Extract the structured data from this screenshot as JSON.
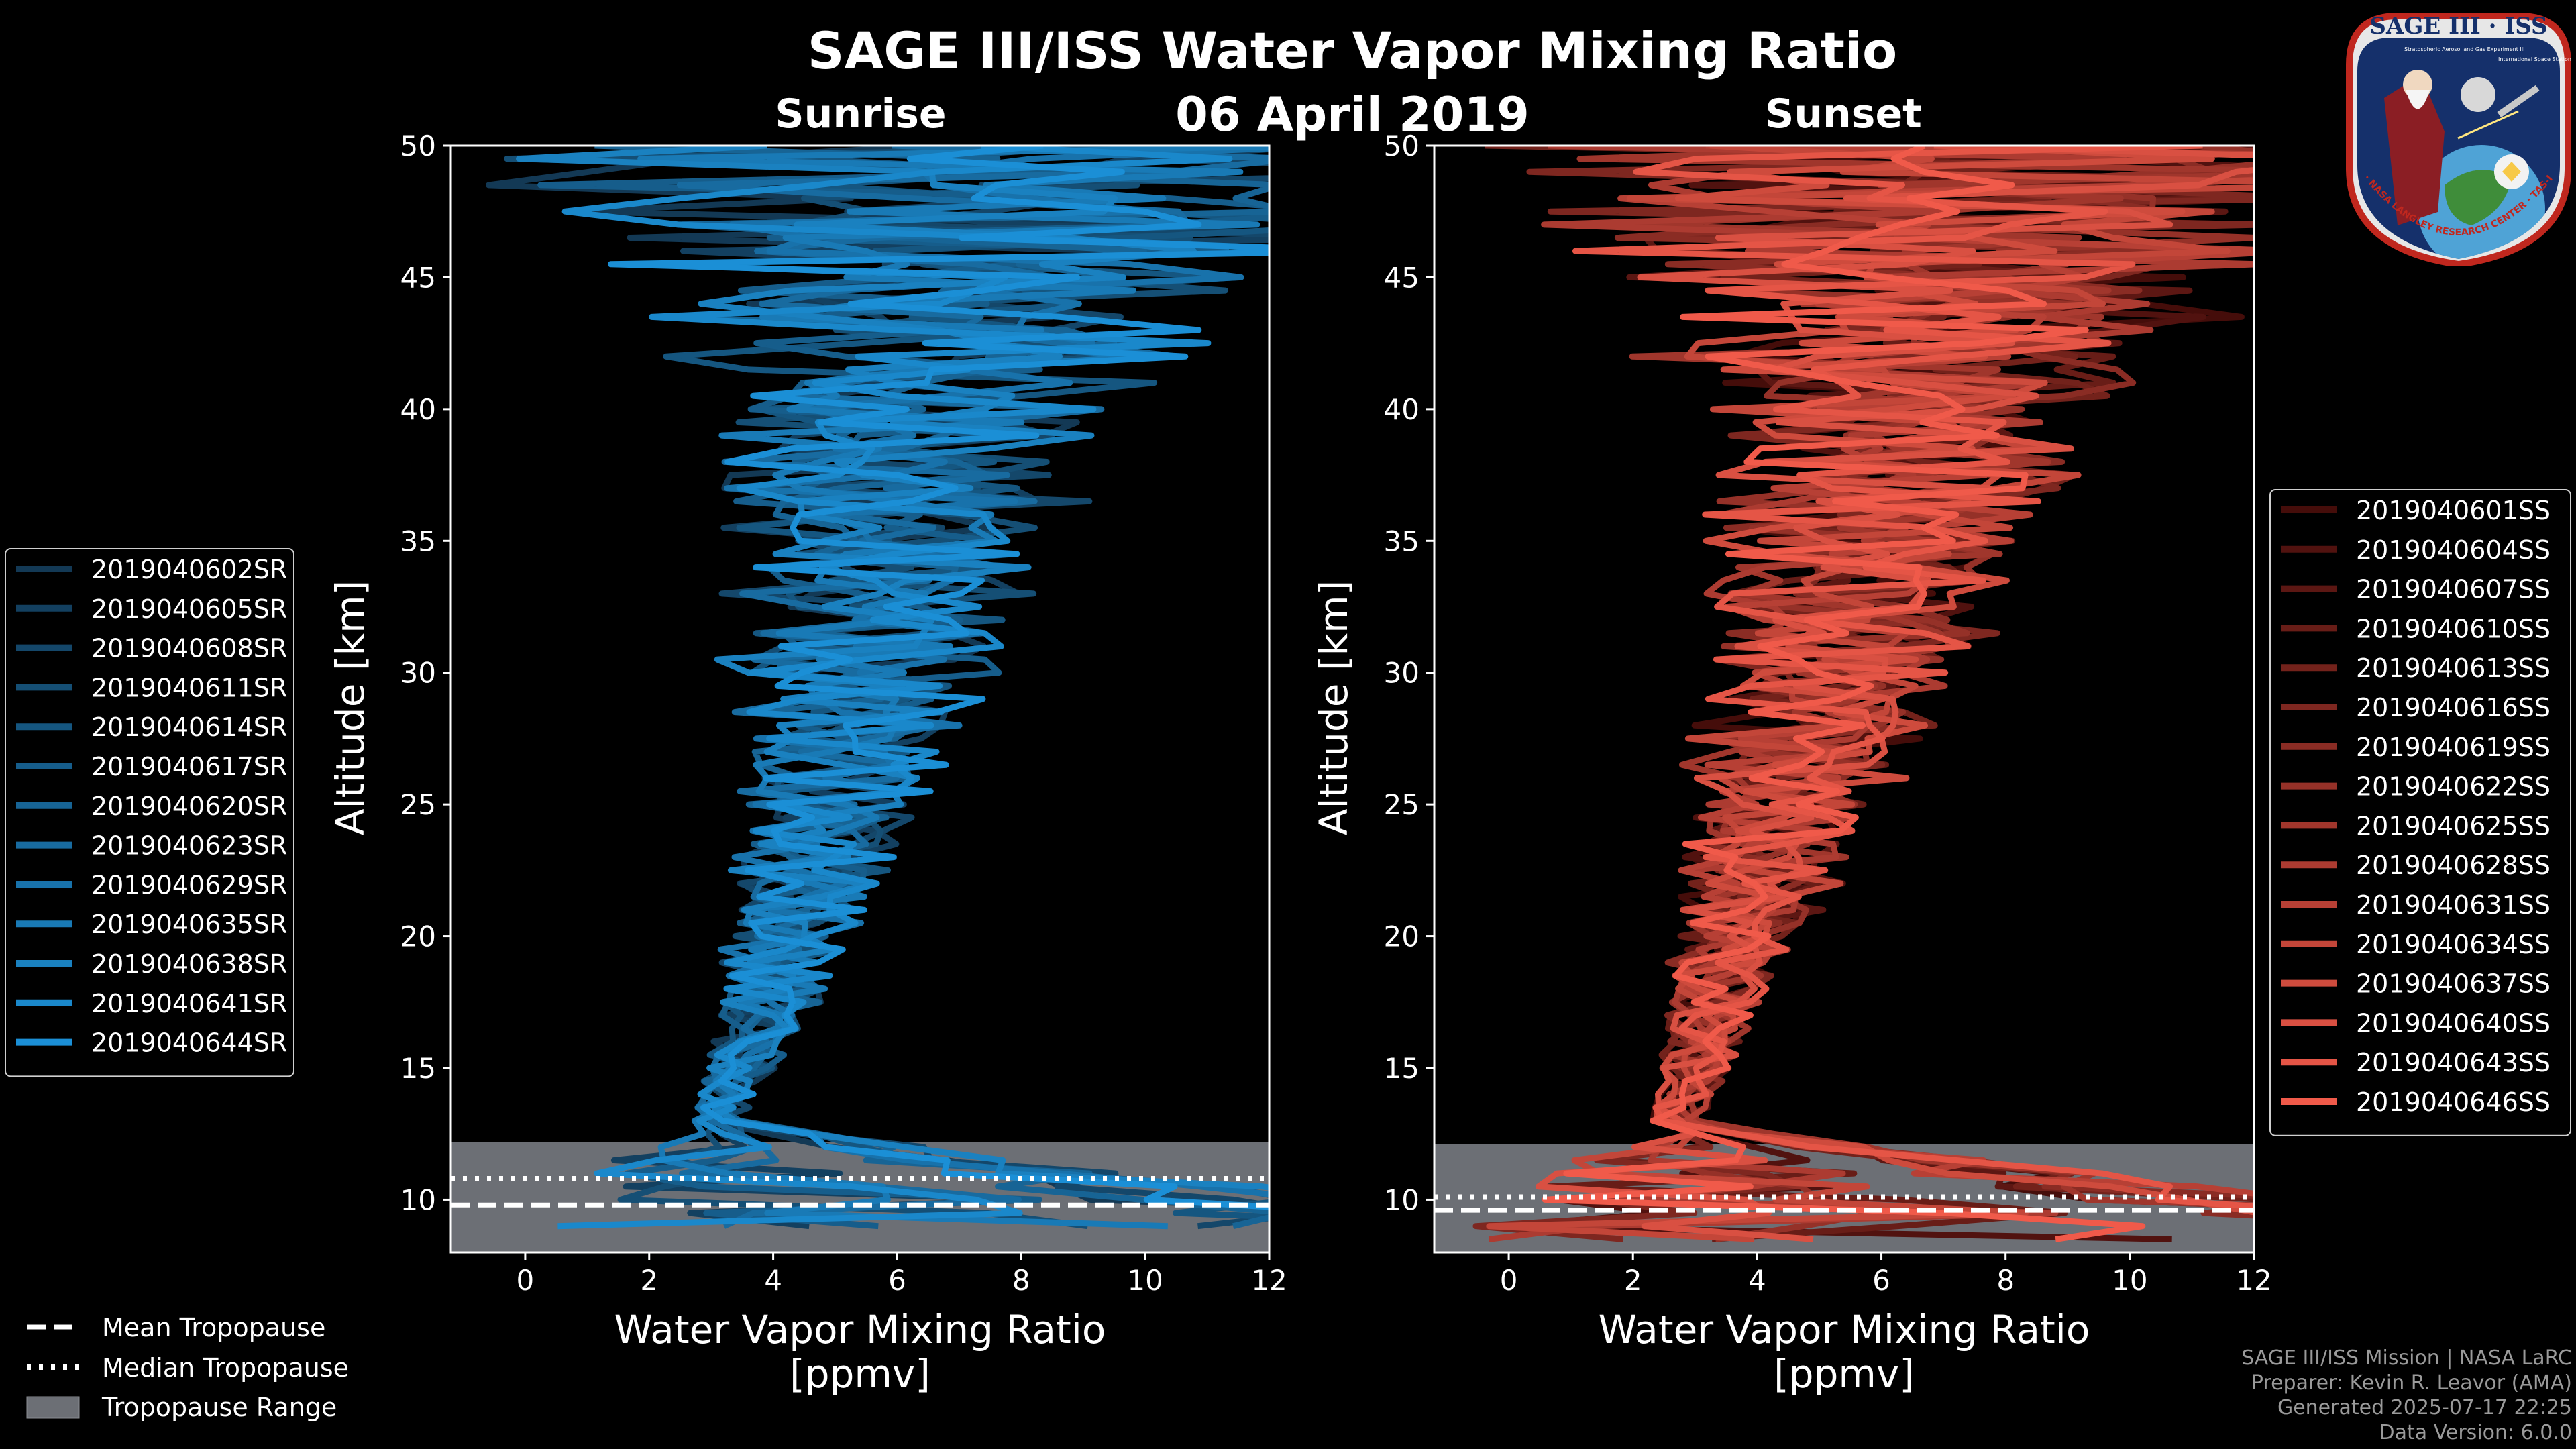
{
  "title": "SAGE III/ISS Water Vapor Mixing Ratio",
  "date": "06 April 2019",
  "colors": {
    "sunrise": "#1b8fd6",
    "sunset": "#f05a4a",
    "background": "#000000",
    "tropo_fill": "#6c6f75"
  },
  "tropopause_legend": {
    "mean": "Mean Tropopause",
    "median": "Median Tropopause",
    "range": "Tropopause Range"
  },
  "footer": {
    "line1": "SAGE III/ISS Mission | NASA LaRC",
    "line2": "Preparer: Kevin R. Leavor (AMA)",
    "line3": "Generated 2025-07-17 22:25",
    "line4": "Data Version: 6.0.0"
  },
  "logo": {
    "top_text": "SAGE III · ISS",
    "ring_text": "BALL · NASA LANGLEY RESEARCH CENTER · TAS-I · ESA",
    "mission_text": "Stratospheric Aerosol and Gas Experiment III",
    "station_text": "International Space Station"
  },
  "chart_data": [
    {
      "type": "line",
      "title": "Sunrise",
      "xlabel": "Water Vapor Mixing Ratio\n[ppmv]",
      "ylabel": "Altitude [km]",
      "xlim": [
        -1.2,
        12
      ],
      "ylim": [
        8,
        50
      ],
      "xticks": [
        0,
        2,
        4,
        6,
        8,
        10,
        12
      ],
      "yticks": [
        10,
        15,
        20,
        25,
        30,
        35,
        40,
        45,
        50
      ],
      "legend": [
        "2019040602SR",
        "2019040605SR",
        "2019040608SR",
        "2019040611SR",
        "2019040614SR",
        "2019040617SR",
        "2019040620SR",
        "2019040623SR",
        "2019040629SR",
        "2019040635SR",
        "2019040638SR",
        "2019040641SR",
        "2019040644SR"
      ],
      "legend_position": "left",
      "tropopause": {
        "mean": 9.8,
        "median": 10.8,
        "range": [
          8,
          12.2
        ]
      },
      "series_shape": {
        "min_altitude": 9,
        "max_altitude": 50,
        "profile": [
          [
            9,
            4.8
          ],
          [
            11,
            3.3
          ],
          [
            13,
            3.1
          ],
          [
            15,
            3.5
          ],
          [
            18,
            4.0
          ],
          [
            21,
            4.4
          ],
          [
            25,
            4.9
          ],
          [
            30,
            5.4
          ],
          [
            35,
            5.9
          ],
          [
            40,
            6.4
          ],
          [
            45,
            6.8
          ],
          [
            50,
            7.2
          ]
        ]
      }
    },
    {
      "type": "line",
      "title": "Sunset",
      "xlabel": "Water Vapor Mixing Ratio\n[ppmv]",
      "ylabel": "Altitude [km]",
      "xlim": [
        -1.2,
        12
      ],
      "ylim": [
        8,
        50
      ],
      "xticks": [
        0,
        2,
        4,
        6,
        8,
        10,
        12
      ],
      "yticks": [
        10,
        15,
        20,
        25,
        30,
        35,
        40,
        45,
        50
      ],
      "legend": [
        "2019040601SS",
        "2019040604SS",
        "2019040607SS",
        "2019040610SS",
        "2019040613SS",
        "2019040616SS",
        "2019040619SS",
        "2019040622SS",
        "2019040625SS",
        "2019040628SS",
        "2019040631SS",
        "2019040634SS",
        "2019040637SS",
        "2019040640SS",
        "2019040643SS",
        "2019040646SS"
      ],
      "legend_position": "right",
      "tropopause": {
        "mean": 9.6,
        "median": 10.1,
        "range": [
          8,
          12.1
        ]
      },
      "series_shape": {
        "min_altitude": 8.5,
        "max_altitude": 50,
        "profile": [
          [
            8.5,
            5.5
          ],
          [
            11,
            3.0
          ],
          [
            13,
            2.7
          ],
          [
            15,
            3.0
          ],
          [
            18,
            3.4
          ],
          [
            21,
            3.9
          ],
          [
            25,
            4.5
          ],
          [
            30,
            5.2
          ],
          [
            35,
            5.8
          ],
          [
            40,
            6.4
          ],
          [
            45,
            6.9
          ],
          [
            50,
            7.4
          ]
        ]
      }
    }
  ]
}
